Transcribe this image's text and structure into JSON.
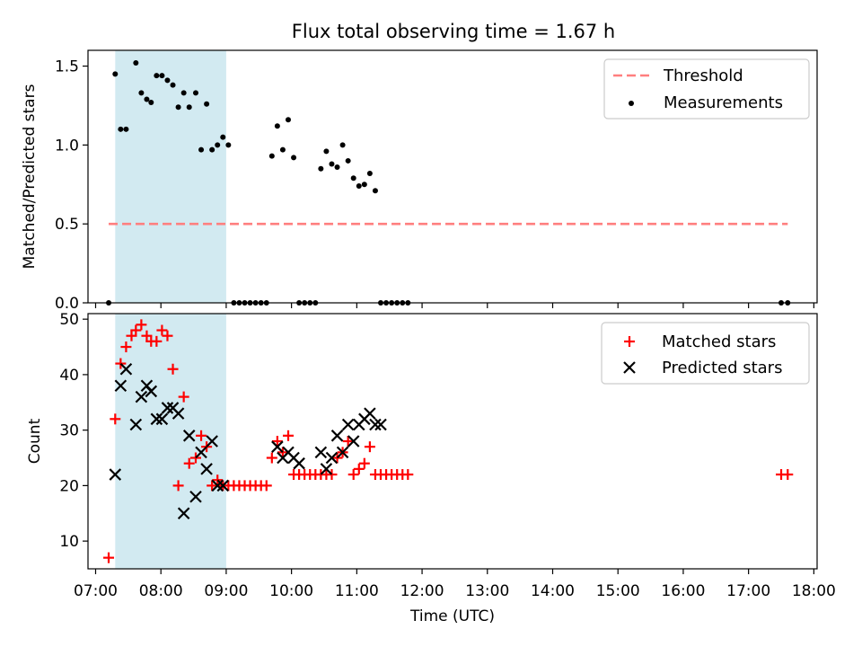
{
  "title": "Flux total observing time = 1.67 h",
  "colors": {
    "threshold": "#ff7f7f",
    "measurements": "#000000",
    "matched": "#ff0000",
    "predicted": "#000000",
    "shade": "#add8e6"
  },
  "chart_data": [
    {
      "type": "scatter",
      "panel": "top",
      "ylabel": "Matched/Predicted stars",
      "xlabel": "",
      "xlim": [
        "06:53",
        "18:03"
      ],
      "ylim": [
        0,
        1.6
      ],
      "yticks": [
        0.0,
        0.5,
        1.0,
        1.5
      ],
      "ytick_labels": [
        "0.0",
        "0.5",
        "1.0",
        "1.5"
      ],
      "xticks": [
        "07:00",
        "08:00",
        "09:00",
        "10:00",
        "11:00",
        "12:00",
        "13:00",
        "14:00",
        "15:00",
        "16:00",
        "17:00",
        "18:00"
      ],
      "shaded_span": [
        "07:18",
        "09:00"
      ],
      "legend": {
        "position": "top-right",
        "entries": [
          {
            "label": "Threshold",
            "marker": "dashed-line"
          },
          {
            "label": "Measurements",
            "marker": "dot"
          }
        ]
      },
      "series": [
        {
          "name": "Threshold",
          "style": "dashed-line",
          "x": [
            "07:12",
            "17:36"
          ],
          "y": [
            0.5,
            0.5
          ]
        },
        {
          "name": "Measurements",
          "style": "dot",
          "x": [
            "07:12",
            "07:18",
            "07:23",
            "07:28",
            "07:37",
            "07:42",
            "07:47",
            "07:51",
            "07:56",
            "08:01",
            "08:06",
            "08:11",
            "08:16",
            "08:21",
            "08:26",
            "08:32",
            "08:37",
            "08:42",
            "08:47",
            "08:52",
            "08:57",
            "09:02",
            "09:07",
            "09:12",
            "09:17",
            "09:22",
            "09:27",
            "09:32",
            "09:37",
            "09:42",
            "09:47",
            "09:52",
            "09:57",
            "10:02",
            "10:07",
            "10:12",
            "10:17",
            "10:22",
            "10:27",
            "10:32",
            "10:37",
            "10:42",
            "10:47",
            "10:52",
            "10:57",
            "11:02",
            "11:07",
            "11:12",
            "11:17",
            "11:22",
            "11:27",
            "11:32",
            "11:37",
            "11:42",
            "11:47",
            "17:30",
            "17:36"
          ],
          "y": [
            0,
            1.45,
            1.1,
            1.1,
            1.52,
            1.33,
            1.29,
            1.27,
            1.44,
            1.44,
            1.41,
            1.38,
            1.24,
            1.33,
            1.24,
            1.33,
            0.97,
            1.26,
            0.97,
            1.0,
            1.05,
            1.0,
            0,
            0,
            0,
            0,
            0,
            0,
            0,
            0.93,
            1.12,
            0.97,
            1.16,
            0.92,
            0,
            0,
            0,
            0,
            0.85,
            0.96,
            0.88,
            0.86,
            1.0,
            0.9,
            0.79,
            0.74,
            0.75,
            0.82,
            0.71,
            0,
            0,
            0,
            0,
            0,
            0,
            0,
            0
          ]
        }
      ]
    },
    {
      "type": "scatter",
      "panel": "bottom",
      "ylabel": "Count",
      "xlabel": "Time (UTC)",
      "xlim": [
        "06:53",
        "18:03"
      ],
      "ylim": [
        5,
        51
      ],
      "yticks": [
        10,
        20,
        30,
        40,
        50
      ],
      "xticks": [
        "07:00",
        "08:00",
        "09:00",
        "10:00",
        "11:00",
        "12:00",
        "13:00",
        "14:00",
        "15:00",
        "16:00",
        "17:00",
        "18:00"
      ],
      "shaded_span": [
        "07:18",
        "09:00"
      ],
      "legend": {
        "position": "top-right",
        "entries": [
          {
            "label": "Matched stars",
            "marker": "plus"
          },
          {
            "label": "Predicted stars",
            "marker": "x"
          }
        ]
      },
      "series": [
        {
          "name": "Matched stars",
          "marker": "plus",
          "x": [
            "07:12",
            "07:18",
            "07:23",
            "07:28",
            "07:33",
            "07:37",
            "07:42",
            "07:47",
            "07:51",
            "07:56",
            "08:01",
            "08:06",
            "08:11",
            "08:16",
            "08:21",
            "08:26",
            "08:32",
            "08:37",
            "08:42",
            "08:47",
            "08:52",
            "08:57",
            "09:02",
            "09:07",
            "09:12",
            "09:17",
            "09:22",
            "09:27",
            "09:32",
            "09:37",
            "09:42",
            "09:47",
            "09:52",
            "09:57",
            "10:02",
            "10:07",
            "10:12",
            "10:17",
            "10:22",
            "10:27",
            "10:32",
            "10:37",
            "10:42",
            "10:47",
            "10:52",
            "10:57",
            "11:02",
            "11:07",
            "11:12",
            "11:17",
            "11:22",
            "11:27",
            "11:32",
            "11:37",
            "11:42",
            "11:47",
            "17:30",
            "17:36"
          ],
          "y": [
            7,
            32,
            42,
            45,
            47,
            48,
            49,
            47,
            46,
            46,
            48,
            47,
            41,
            20,
            36,
            24,
            25,
            29,
            27,
            20,
            21,
            20,
            20,
            20,
            20,
            20,
            20,
            20,
            20,
            20,
            25,
            28,
            26,
            29,
            22,
            22,
            22,
            22,
            22,
            22,
            22,
            22,
            25,
            26,
            28,
            22,
            23,
            24,
            27,
            22,
            22,
            22,
            22,
            22,
            22,
            22,
            22,
            22
          ]
        },
        {
          "name": "Predicted stars",
          "marker": "x",
          "x": [
            "07:18",
            "07:23",
            "07:28",
            "07:37",
            "07:42",
            "07:47",
            "07:51",
            "07:56",
            "08:01",
            "08:06",
            "08:11",
            "08:16",
            "08:21",
            "08:26",
            "08:32",
            "08:37",
            "08:42",
            "08:47",
            "08:52",
            "08:57",
            "09:47",
            "09:52",
            "09:57",
            "10:02",
            "10:07",
            "10:27",
            "10:32",
            "10:37",
            "10:42",
            "10:47",
            "10:52",
            "10:57",
            "11:02",
            "11:07",
            "11:12",
            "11:17",
            "11:22"
          ],
          "y": [
            22,
            38,
            41,
            31,
            36,
            38,
            37,
            32,
            32,
            34,
            34,
            33,
            15,
            29,
            18,
            26,
            23,
            28,
            20,
            20,
            27,
            25,
            26,
            25,
            24,
            26,
            23,
            25,
            29,
            26,
            31,
            28,
            31,
            32,
            33,
            31,
            31
          ]
        }
      ]
    }
  ]
}
